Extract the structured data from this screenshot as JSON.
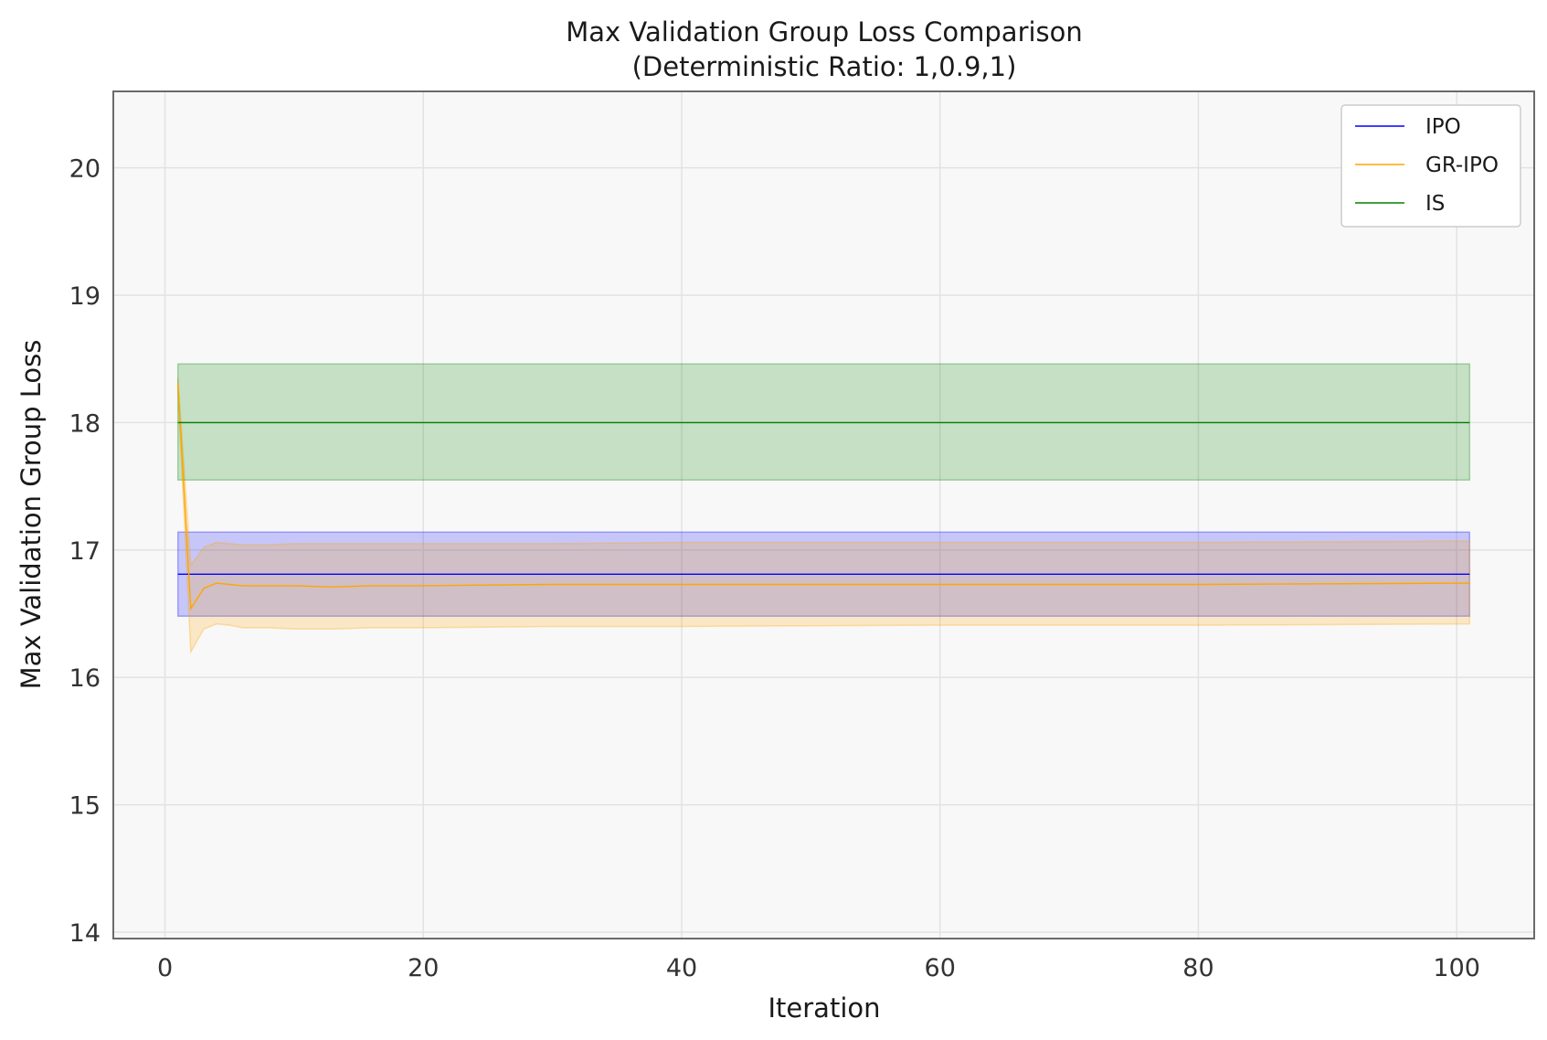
{
  "chart_data": {
    "type": "line",
    "title": "Max Validation Group Loss Comparison",
    "subtitle": "(Deterministic Ratio: 1,0.9,1)",
    "xlabel": "Iteration",
    "ylabel": "Max Validation Group Loss",
    "xlim": [
      -4,
      106
    ],
    "ylim": [
      13.95,
      20.6
    ],
    "xticks": [
      0,
      20,
      40,
      60,
      80,
      100
    ],
    "yticks": [
      14,
      15,
      16,
      17,
      18,
      19,
      20
    ],
    "grid": true,
    "legend_position": "top-right",
    "series": [
      {
        "name": "IPO",
        "color": "#0000ff",
        "x": [
          1,
          101
        ],
        "y": [
          16.81,
          16.81
        ],
        "lower": [
          16.48,
          16.48
        ],
        "upper": [
          17.14,
          17.14
        ]
      },
      {
        "name": "GR-IPO",
        "color": "#ffa500",
        "x": [
          1,
          2,
          3,
          4,
          5,
          6,
          8,
          10,
          13,
          16,
          20,
          30,
          40,
          60,
          80,
          101
        ],
        "y": [
          18.3,
          16.54,
          16.7,
          16.74,
          16.73,
          16.72,
          16.72,
          16.72,
          16.71,
          16.72,
          16.72,
          16.73,
          16.73,
          16.73,
          16.73,
          16.74
        ],
        "lower": [
          18.25,
          16.2,
          16.38,
          16.42,
          16.41,
          16.39,
          16.39,
          16.38,
          16.38,
          16.39,
          16.39,
          16.4,
          16.4,
          16.41,
          16.41,
          16.42
        ],
        "upper": [
          18.35,
          16.88,
          17.02,
          17.06,
          17.05,
          17.04,
          17.04,
          17.05,
          17.05,
          17.05,
          17.05,
          17.05,
          17.06,
          17.06,
          17.06,
          17.07
        ]
      },
      {
        "name": "IS",
        "color": "#008000",
        "x": [
          1,
          101
        ],
        "y": [
          18.0,
          18.0
        ],
        "lower": [
          17.55,
          17.55
        ],
        "upper": [
          18.46,
          18.46
        ]
      }
    ]
  }
}
